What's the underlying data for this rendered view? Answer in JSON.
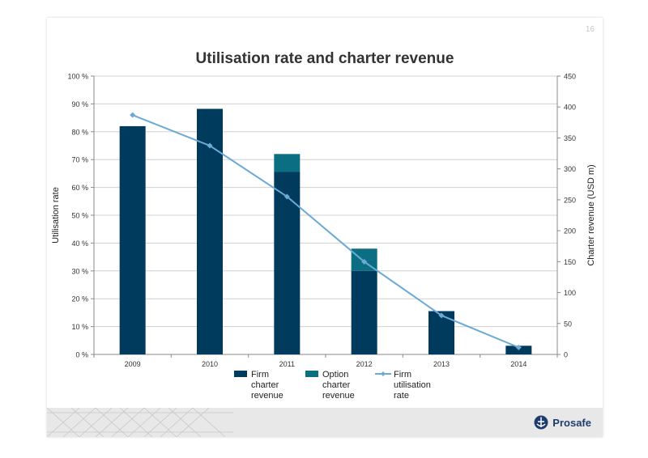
{
  "page": {
    "number": "16"
  },
  "brand": {
    "name": "Prosafe"
  },
  "colors": {
    "firm": "#003a5c",
    "option": "#0b6e82",
    "line": "#6aaad6",
    "axis": "#8a8a8a",
    "grid": "#d0d0d0",
    "text": "#333333"
  },
  "chart_data": {
    "type": "bar",
    "title": "Utilisation rate and charter revenue",
    "categories": [
      "2009",
      "2010",
      "2011",
      "2012",
      "2013",
      "2014"
    ],
    "series": [
      {
        "name": "Firm charter revenue",
        "kind": "bar",
        "stack": "revenue",
        "axis": "right",
        "values": [
          369,
          397,
          295,
          135,
          70,
          14
        ]
      },
      {
        "name": "Option charter revenue",
        "kind": "bar",
        "stack": "revenue",
        "axis": "right",
        "values": [
          0,
          0,
          29,
          36,
          0,
          0
        ]
      },
      {
        "name": "Firm utilisation rate",
        "kind": "line",
        "axis": "left",
        "values": [
          0.86,
          0.75,
          0.567,
          0.333,
          0.14,
          0.025
        ]
      }
    ],
    "y_left": {
      "label": "Utilisation rate",
      "ylim": [
        0,
        1
      ],
      "ticks": [
        0,
        0.1,
        0.2,
        0.3,
        0.4,
        0.5,
        0.6,
        0.7,
        0.8,
        0.9,
        1.0
      ],
      "tick_labels": [
        "0 %",
        "10 %",
        "20 %",
        "30 %",
        "40 %",
        "50 %",
        "60 %",
        "70 %",
        "80 %",
        "90 %",
        "100 %"
      ]
    },
    "y_right": {
      "label": "Charter revenue (USD m)",
      "ylim": [
        0,
        450
      ],
      "ticks": [
        0,
        50,
        100,
        150,
        200,
        250,
        300,
        350,
        400,
        450
      ],
      "tick_labels": [
        "0",
        "50",
        "100",
        "150",
        "200",
        "250",
        "300",
        "350",
        "400",
        "450"
      ]
    },
    "legend": {
      "placement": "bottom",
      "entries": [
        {
          "lines": [
            "Firm",
            "charter",
            "revenue"
          ]
        },
        {
          "lines": [
            "Option",
            "charter",
            "revenue"
          ]
        },
        {
          "lines": [
            "Firm",
            "utilisation",
            "rate"
          ]
        }
      ]
    },
    "grid": true
  }
}
